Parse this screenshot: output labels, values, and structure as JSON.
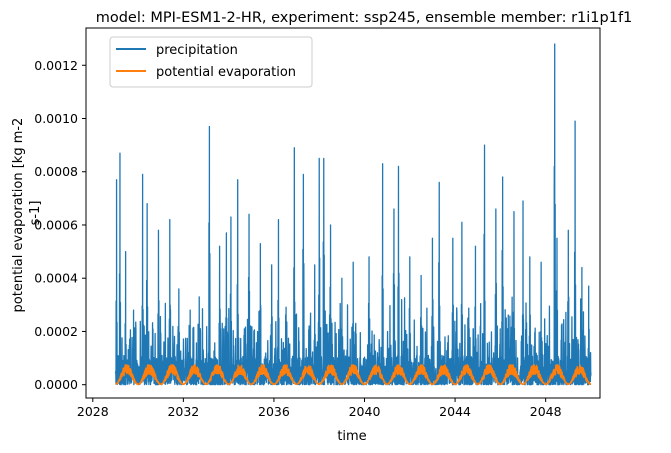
{
  "chart_data": {
    "type": "line",
    "title": "model: MPI-ESM1-2-HR, experiment: ssp245, ensemble member: r1i1p1f1",
    "xlabel": "time",
    "ylabel_lines": [
      "potential evaporation [kg m-2",
      "s-1]"
    ],
    "xlim": [
      2027.7,
      2050.4
    ],
    "ylim": [
      -5e-05,
      0.00134
    ],
    "x_ticks": [
      {
        "value": 2028,
        "label": "2028"
      },
      {
        "value": 2032,
        "label": "2032"
      },
      {
        "value": 2036,
        "label": "2036"
      },
      {
        "value": 2040,
        "label": "2040"
      },
      {
        "value": 2044,
        "label": "2044"
      },
      {
        "value": 2048,
        "label": "2048"
      }
    ],
    "y_ticks": [
      {
        "value": 0.0,
        "label": "0.0000"
      },
      {
        "value": 0.0002,
        "label": "0.0002"
      },
      {
        "value": 0.0004,
        "label": "0.0004"
      },
      {
        "value": 0.0006,
        "label": "0.0006"
      },
      {
        "value": 0.0008,
        "label": "0.0008"
      },
      {
        "value": 0.001,
        "label": "0.0010"
      },
      {
        "value": 0.0012,
        "label": "0.0012"
      }
    ],
    "legend_position": "top-left",
    "grid": false,
    "series": [
      {
        "name": "precipitation",
        "color": "#1f77b4",
        "x_range": [
          2029.0,
          2050.0
        ],
        "typical_level": 5e-05,
        "peaks": [
          [
            2029.05,
            0.00077
          ],
          [
            2029.2,
            0.00087
          ],
          [
            2029.45,
            0.0005
          ],
          [
            2029.8,
            0.00028
          ],
          [
            2030.2,
            0.00079
          ],
          [
            2030.4,
            0.00068
          ],
          [
            2030.9,
            0.00058
          ],
          [
            2031.4,
            0.00062
          ],
          [
            2031.8,
            0.00036
          ],
          [
            2032.3,
            0.00028
          ],
          [
            2032.7,
            0.00033
          ],
          [
            2033.15,
            0.00097
          ],
          [
            2033.6,
            0.00052
          ],
          [
            2033.9,
            0.00057
          ],
          [
            2034.1,
            0.00063
          ],
          [
            2034.4,
            0.00077
          ],
          [
            2034.9,
            0.00064
          ],
          [
            2035.4,
            0.00053
          ],
          [
            2035.9,
            0.00045
          ],
          [
            2036.2,
            0.00062
          ],
          [
            2036.9,
            0.00089
          ],
          [
            2037.3,
            0.00079
          ],
          [
            2037.8,
            0.00045
          ],
          [
            2038.0,
            0.00085
          ],
          [
            2038.2,
            0.00085
          ],
          [
            2038.5,
            0.0006
          ],
          [
            2039.0,
            0.0004
          ],
          [
            2039.5,
            0.00046
          ],
          [
            2040.2,
            0.00048
          ],
          [
            2040.8,
            0.00083
          ],
          [
            2041.3,
            0.00066
          ],
          [
            2041.5,
            0.00082
          ],
          [
            2042.0,
            0.00048
          ],
          [
            2042.5,
            0.00041
          ],
          [
            2043.0,
            0.00055
          ],
          [
            2043.3,
            0.00076
          ],
          [
            2043.9,
            0.00055
          ],
          [
            2044.3,
            0.00061
          ],
          [
            2044.9,
            0.00052
          ],
          [
            2045.3,
            0.0009
          ],
          [
            2045.8,
            0.00066
          ],
          [
            2046.1,
            0.00078
          ],
          [
            2046.6,
            0.00065
          ],
          [
            2047.0,
            0.00069
          ],
          [
            2047.3,
            0.00048
          ],
          [
            2047.8,
            0.00046
          ],
          [
            2048.4,
            0.00128
          ],
          [
            2048.5,
            0.00055
          ],
          [
            2049.0,
            0.00058
          ],
          [
            2049.3,
            0.00099
          ],
          [
            2049.6,
            0.00044
          ],
          [
            2049.9,
            0.00037
          ]
        ]
      },
      {
        "name": "potential evaporation",
        "color": "#ff7f0e",
        "x_range": [
          2029.0,
          2050.0
        ],
        "seasonal_min": 2e-06,
        "seasonal_max": 7e-05,
        "cycles_per_year": 1
      }
    ]
  }
}
